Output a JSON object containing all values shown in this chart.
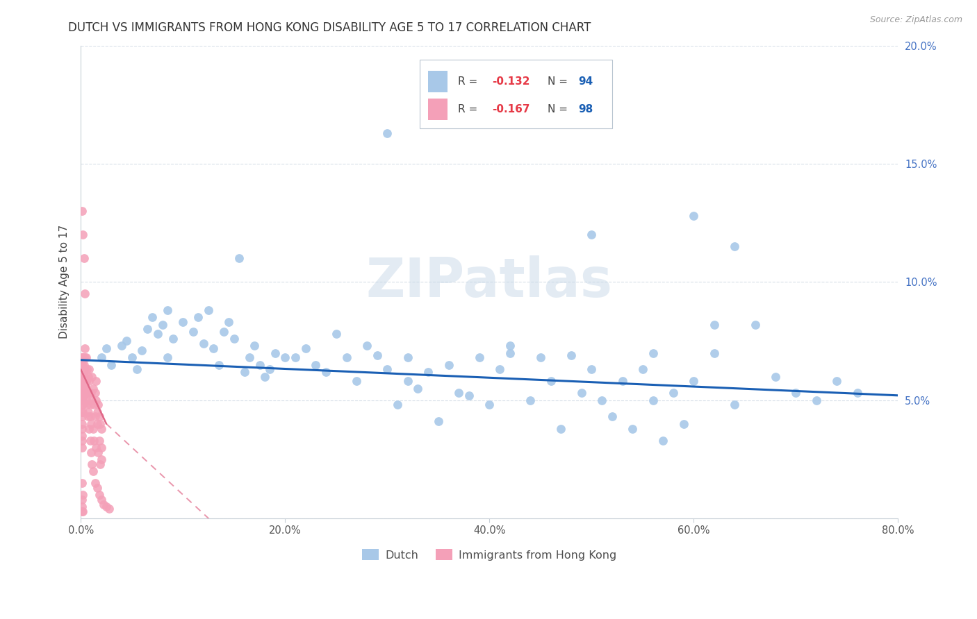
{
  "title": "DUTCH VS IMMIGRANTS FROM HONG KONG DISABILITY AGE 5 TO 17 CORRELATION CHART",
  "source": "Source: ZipAtlas.com",
  "ylabel": "Disability Age 5 to 17",
  "xlim": [
    0.0,
    0.8
  ],
  "ylim": [
    0.0,
    0.2
  ],
  "xticks": [
    0.0,
    0.2,
    0.4,
    0.6,
    0.8
  ],
  "xticklabels": [
    "0.0%",
    "20.0%",
    "40.0%",
    "60.0%",
    "80.0%"
  ],
  "yticks": [
    0.0,
    0.05,
    0.1,
    0.15,
    0.2
  ],
  "ytick_labels_right": [
    "",
    "5.0%",
    "10.0%",
    "15.0%",
    "20.0%"
  ],
  "dutch_color": "#a8c8e8",
  "hk_color": "#f4a0b8",
  "dutch_line_color": "#1a5fb4",
  "hk_line_color": "#e06888",
  "background_color": "#ffffff",
  "grid_color": "#d8dfe8",
  "grid_style": "--",
  "watermark": "ZIPatlas",
  "watermark_color": "#c8d8e8",
  "legend_r_color": "#e63946",
  "legend_n_color": "#1a5fb4",
  "dutch_trend": [
    0.0,
    0.067,
    0.8,
    0.052
  ],
  "hk_trend_solid": [
    0.0,
    0.063,
    0.025,
    0.04
  ],
  "hk_trend_dashed": [
    0.025,
    0.04,
    0.2,
    -0.03
  ],
  "dutch_x": [
    0.02,
    0.025,
    0.03,
    0.04,
    0.045,
    0.05,
    0.055,
    0.06,
    0.065,
    0.07,
    0.075,
    0.08,
    0.085,
    0.085,
    0.09,
    0.1,
    0.11,
    0.115,
    0.12,
    0.125,
    0.13,
    0.135,
    0.14,
    0.145,
    0.15,
    0.155,
    0.16,
    0.165,
    0.17,
    0.175,
    0.18,
    0.185,
    0.19,
    0.2,
    0.21,
    0.22,
    0.23,
    0.24,
    0.25,
    0.26,
    0.27,
    0.28,
    0.29,
    0.3,
    0.31,
    0.32,
    0.33,
    0.34,
    0.35,
    0.36,
    0.37,
    0.38,
    0.39,
    0.4,
    0.41,
    0.42,
    0.44,
    0.45,
    0.46,
    0.47,
    0.48,
    0.49,
    0.5,
    0.51,
    0.52,
    0.53,
    0.54,
    0.55,
    0.56,
    0.57,
    0.58,
    0.59,
    0.6,
    0.62,
    0.64,
    0.66,
    0.68,
    0.7,
    0.72,
    0.74,
    0.76,
    0.32,
    0.42,
    0.56,
    0.62,
    0.3,
    0.4,
    0.5,
    0.6,
    0.64
  ],
  "dutch_y": [
    0.068,
    0.072,
    0.065,
    0.073,
    0.075,
    0.068,
    0.063,
    0.071,
    0.08,
    0.085,
    0.078,
    0.082,
    0.088,
    0.068,
    0.076,
    0.083,
    0.079,
    0.085,
    0.074,
    0.088,
    0.072,
    0.065,
    0.079,
    0.083,
    0.076,
    0.11,
    0.062,
    0.068,
    0.073,
    0.065,
    0.06,
    0.063,
    0.07,
    0.068,
    0.068,
    0.072,
    0.065,
    0.062,
    0.078,
    0.068,
    0.058,
    0.073,
    0.069,
    0.063,
    0.048,
    0.058,
    0.055,
    0.062,
    0.041,
    0.065,
    0.053,
    0.052,
    0.068,
    0.048,
    0.063,
    0.073,
    0.05,
    0.068,
    0.058,
    0.038,
    0.069,
    0.053,
    0.063,
    0.05,
    0.043,
    0.058,
    0.038,
    0.063,
    0.05,
    0.033,
    0.053,
    0.04,
    0.058,
    0.07,
    0.048,
    0.082,
    0.06,
    0.053,
    0.05,
    0.058,
    0.053,
    0.068,
    0.07,
    0.07,
    0.082,
    0.163,
    0.17,
    0.12,
    0.128,
    0.115
  ],
  "hk_x": [
    0.002,
    0.003,
    0.003,
    0.004,
    0.004,
    0.005,
    0.005,
    0.006,
    0.006,
    0.007,
    0.007,
    0.007,
    0.008,
    0.008,
    0.009,
    0.009,
    0.01,
    0.01,
    0.011,
    0.011,
    0.012,
    0.012,
    0.013,
    0.013,
    0.014,
    0.014,
    0.015,
    0.015,
    0.015,
    0.016,
    0.016,
    0.017,
    0.017,
    0.018,
    0.018,
    0.019,
    0.019,
    0.02,
    0.02,
    0.02,
    0.001,
    0.001,
    0.001,
    0.001,
    0.001,
    0.001,
    0.001,
    0.001,
    0.001,
    0.001,
    0.001,
    0.001,
    0.001,
    0.001,
    0.001,
    0.002,
    0.002,
    0.002,
    0.002,
    0.002,
    0.002,
    0.002,
    0.002,
    0.002,
    0.003,
    0.003,
    0.003,
    0.003,
    0.003,
    0.004,
    0.004,
    0.004,
    0.005,
    0.005,
    0.006,
    0.007,
    0.008,
    0.009,
    0.01,
    0.011,
    0.012,
    0.014,
    0.016,
    0.018,
    0.02,
    0.022,
    0.025,
    0.028,
    0.001,
    0.002,
    0.003,
    0.004,
    0.001,
    0.002,
    0.001,
    0.001,
    0.001,
    0.002
  ],
  "hk_y": [
    0.068,
    0.065,
    0.06,
    0.072,
    0.055,
    0.068,
    0.058,
    0.063,
    0.05,
    0.06,
    0.045,
    0.053,
    0.058,
    0.063,
    0.043,
    0.048,
    0.04,
    0.053,
    0.05,
    0.06,
    0.038,
    0.055,
    0.033,
    0.048,
    0.043,
    0.053,
    0.03,
    0.05,
    0.058,
    0.04,
    0.045,
    0.028,
    0.048,
    0.033,
    0.043,
    0.023,
    0.04,
    0.03,
    0.038,
    0.025,
    0.065,
    0.068,
    0.06,
    0.058,
    0.055,
    0.052,
    0.05,
    0.048,
    0.045,
    0.043,
    0.04,
    0.038,
    0.035,
    0.033,
    0.03,
    0.068,
    0.065,
    0.06,
    0.058,
    0.055,
    0.052,
    0.05,
    0.048,
    0.045,
    0.063,
    0.06,
    0.058,
    0.055,
    0.052,
    0.068,
    0.06,
    0.055,
    0.058,
    0.053,
    0.048,
    0.043,
    0.038,
    0.033,
    0.028,
    0.023,
    0.02,
    0.015,
    0.013,
    0.01,
    0.008,
    0.006,
    0.005,
    0.004,
    0.13,
    0.12,
    0.11,
    0.095,
    0.015,
    0.01,
    0.008,
    0.005,
    0.003,
    0.003
  ]
}
